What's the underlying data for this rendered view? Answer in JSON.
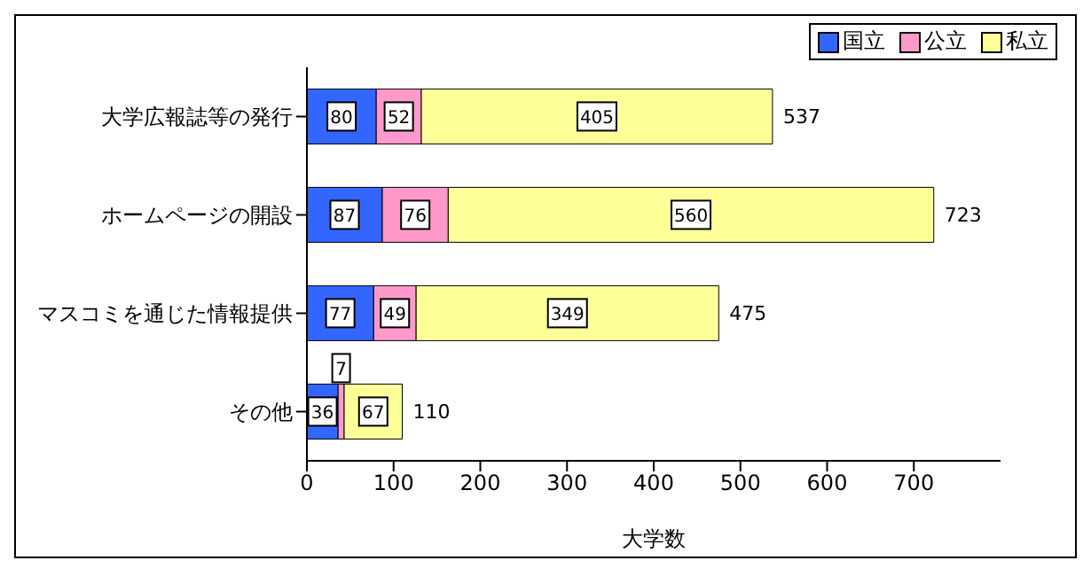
{
  "chart_data": {
    "type": "bar",
    "orientation": "horizontal",
    "stacked": true,
    "xlabel": "大学数",
    "categories": [
      "大学広報誌等の発行",
      "ホームページの開設",
      "マスコミを通じた情報提供",
      "その他"
    ],
    "series": [
      {
        "name": "国立",
        "color": "#3366ff",
        "values": [
          80,
          87,
          77,
          36
        ]
      },
      {
        "name": "公立",
        "color": "#ff99cc",
        "values": [
          52,
          76,
          49,
          7
        ]
      },
      {
        "name": "私立",
        "color": "#ffff99",
        "values": [
          405,
          560,
          349,
          67
        ]
      }
    ],
    "totals": [
      "537",
      "723",
      "475",
      "110"
    ],
    "data_labels": true,
    "xlim": [
      0,
      800
    ],
    "xticks": [
      0,
      100,
      200,
      300,
      400,
      500,
      600,
      700
    ],
    "grid": false,
    "legend": "top right"
  }
}
